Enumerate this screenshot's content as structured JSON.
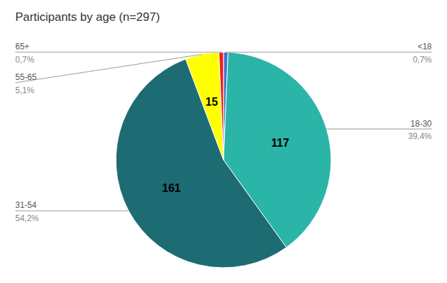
{
  "chart_data": {
    "type": "pie",
    "title": "Participants by age (n=297)",
    "categories": [
      "<18",
      "18-30",
      "31-54",
      "55-65",
      "65+"
    ],
    "values": [
      2,
      117,
      161,
      15,
      2
    ],
    "value_labels": [
      null,
      "117",
      "161",
      "15",
      null
    ],
    "shares": [
      {
        "value": 0.7,
        "label": "0,7%"
      },
      {
        "value": 39.4,
        "label": "39,4%"
      },
      {
        "value": 54.2,
        "label": "54,2%"
      },
      {
        "value": 5.1,
        "label": "5,1%"
      },
      {
        "value": 0.7,
        "label": "0,7%"
      }
    ],
    "colors": [
      "#4472C4",
      "#2AB5A8",
      "#1D6B73",
      "#FFFF00",
      "#EE2020"
    ]
  }
}
